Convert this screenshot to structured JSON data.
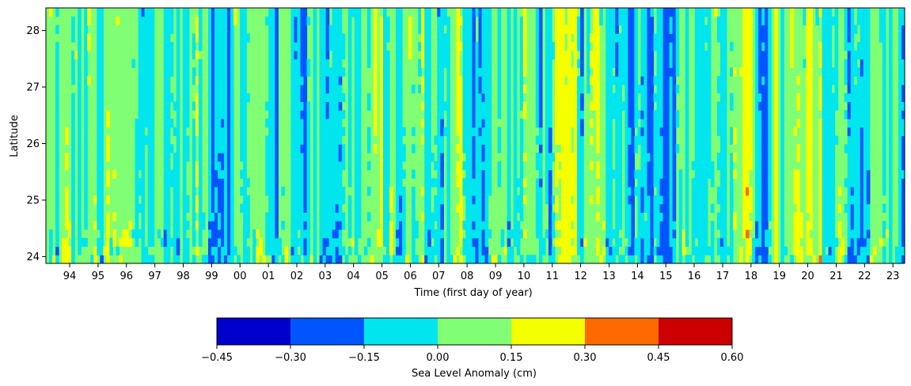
{
  "chart_data": {
    "type": "heatmap",
    "title": "",
    "xlabel": "Time (first day of year)",
    "ylabel": "Latitude",
    "x_start": "1993-03-01",
    "x_end": "2023-06-01",
    "x_tick_labels": [
      "94",
      "95",
      "96",
      "97",
      "98",
      "99",
      "00",
      "01",
      "02",
      "03",
      "04",
      "05",
      "06",
      "07",
      "08",
      "09",
      "10",
      "11",
      "12",
      "13",
      "14",
      "15",
      "16",
      "17",
      "18",
      "19",
      "20",
      "21",
      "22",
      "23"
    ],
    "y_ticks": [
      24,
      25,
      26,
      27,
      28
    ],
    "ylim": [
      23.88,
      28.4
    ],
    "colorbar": {
      "label": "Sea Level Anomaly (cm)",
      "boundaries": [
        -0.45,
        -0.3,
        -0.15,
        0.0,
        0.15,
        0.3,
        0.45,
        0.6
      ],
      "tick_labels": [
        "−0.45",
        "−0.30",
        "−0.15",
        "0.00",
        "0.15",
        "0.30",
        "0.45",
        "0.60"
      ],
      "colors": [
        "#0000cd",
        "#0055ff",
        "#00e5ee",
        "#80ff74",
        "#f4ff00",
        "#ff6a00",
        "#cc0000"
      ]
    }
  }
}
